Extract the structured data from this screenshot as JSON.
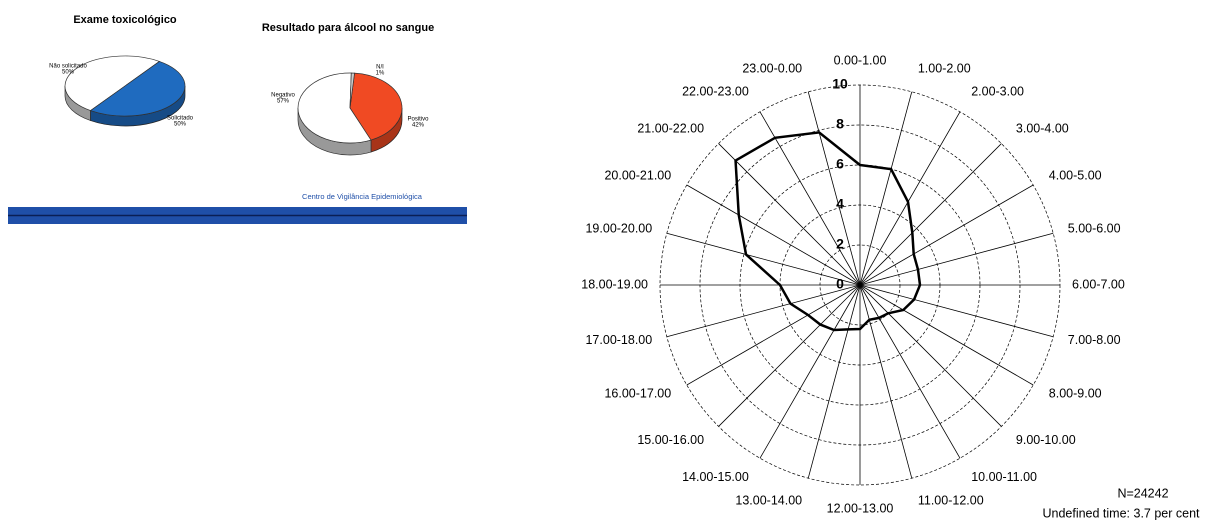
{
  "chart_data": [
    {
      "type": "pie",
      "title": "Exame toxicológico",
      "categories": [
        "Não solicitado",
        "Solicitado"
      ],
      "values": [
        50,
        50
      ],
      "value_labels": [
        "50%",
        "50%"
      ],
      "colors": [
        "#ffffff",
        "#1f6bbf"
      ]
    },
    {
      "type": "pie",
      "title": "Resultado para álcool no sangue",
      "categories": [
        "Positivo",
        "Negativo",
        "N/I"
      ],
      "values": [
        42,
        57,
        1
      ],
      "value_labels": [
        "42%",
        "57%",
        "1%"
      ],
      "colors": [
        "#f04a23",
        "#ffffff",
        "#cccccc"
      ],
      "source": "Centro de Vigilância Epidemiológica"
    },
    {
      "type": "radar",
      "categories": [
        "0.00-1.00",
        "1.00-2.00",
        "2.00-3.00",
        "3.00-4.00",
        "4.00-5.00",
        "5.00-6.00",
        "6.00-7.00",
        "7.00-8.00",
        "8.00-9.00",
        "9.00-10.00",
        "10.00-11.00",
        "11.00-12.00",
        "12.00-13.00",
        "13.00-14.00",
        "14.00-15.00",
        "15.00-16.00",
        "16.00-17.00",
        "17.00-18.00",
        "18.00-19.00",
        "19.00-20.00",
        "20.00-21.00",
        "21.00-22.00",
        "22.00-23.00",
        "23.00-0.00"
      ],
      "values": [
        6.0,
        6.0,
        4.8,
        3.7,
        3.1,
        3.0,
        3.0,
        2.8,
        2.5,
        2.0,
        1.9,
        1.8,
        2.2,
        2.3,
        2.6,
        2.8,
        3.0,
        3.6,
        4.0,
        5.9,
        7.0,
        8.8,
        8.5,
        7.9
      ],
      "color": "#000000",
      "ylim": [
        0,
        10
      ],
      "yticks": [
        0,
        2,
        4,
        6,
        8,
        10
      ],
      "grid": true,
      "annotations": [
        "N=24242",
        "Undefined time: 3.7 per cent"
      ]
    }
  ]
}
